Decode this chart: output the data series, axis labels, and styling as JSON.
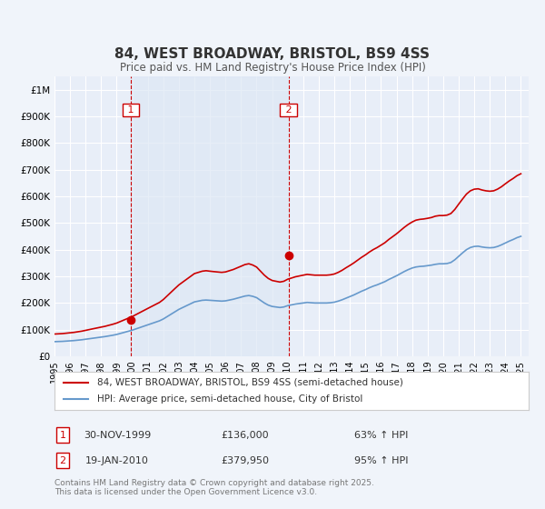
{
  "title": "84, WEST BROADWAY, BRISTOL, BS9 4SS",
  "subtitle": "Price paid vs. HM Land Registry's House Price Index (HPI)",
  "bg_color": "#f0f4fa",
  "plot_bg_color": "#e8eef8",
  "grid_color": "#ffffff",
  "red_color": "#cc0000",
  "blue_color": "#6699cc",
  "purchase1_year": 1999.92,
  "purchase1_price": 136000,
  "purchase1_label": "1",
  "purchase1_date": "30-NOV-1999",
  "purchase1_pct": "63% ↑ HPI",
  "purchase2_year": 2010.05,
  "purchase2_price": 379950,
  "purchase2_label": "2",
  "purchase2_date": "19-JAN-2010",
  "purchase2_pct": "95% ↑ HPI",
  "legend_line1": "84, WEST BROADWAY, BRISTOL, BS9 4SS (semi-detached house)",
  "legend_line2": "HPI: Average price, semi-detached house, City of Bristol",
  "footnote": "Contains HM Land Registry data © Crown copyright and database right 2025.\nThis data is licensed under the Open Government Licence v3.0.",
  "xmin": 1995,
  "xmax": 2025.5,
  "ymin": 0,
  "ymax": 1050000,
  "yticks": [
    0,
    100000,
    200000,
    300000,
    400000,
    500000,
    600000,
    700000,
    800000,
    900000,
    1000000
  ],
  "ytick_labels": [
    "£0",
    "£100K",
    "£200K",
    "£300K",
    "£400K",
    "£500K",
    "£600K",
    "£700K",
    "£800K",
    "£900K",
    "£1M"
  ],
  "xticks": [
    1995,
    1996,
    1997,
    1998,
    1999,
    2000,
    2001,
    2002,
    2003,
    2004,
    2005,
    2006,
    2007,
    2008,
    2009,
    2010,
    2011,
    2012,
    2013,
    2014,
    2015,
    2016,
    2017,
    2018,
    2019,
    2020,
    2021,
    2022,
    2023,
    2024,
    2025
  ],
  "hpi_x": [
    1995.0,
    1995.25,
    1995.5,
    1995.75,
    1996.0,
    1996.25,
    1996.5,
    1996.75,
    1997.0,
    1997.25,
    1997.5,
    1997.75,
    1998.0,
    1998.25,
    1998.5,
    1998.75,
    1999.0,
    1999.25,
    1999.5,
    1999.75,
    2000.0,
    2000.25,
    2000.5,
    2000.75,
    2001.0,
    2001.25,
    2001.5,
    2001.75,
    2002.0,
    2002.25,
    2002.5,
    2002.75,
    2003.0,
    2003.25,
    2003.5,
    2003.75,
    2004.0,
    2004.25,
    2004.5,
    2004.75,
    2005.0,
    2005.25,
    2005.5,
    2005.75,
    2006.0,
    2006.25,
    2006.5,
    2006.75,
    2007.0,
    2007.25,
    2007.5,
    2007.75,
    2008.0,
    2008.25,
    2008.5,
    2008.75,
    2009.0,
    2009.25,
    2009.5,
    2009.75,
    2010.0,
    2010.25,
    2010.5,
    2010.75,
    2011.0,
    2011.25,
    2011.5,
    2011.75,
    2012.0,
    2012.25,
    2012.5,
    2012.75,
    2013.0,
    2013.25,
    2013.5,
    2013.75,
    2014.0,
    2014.25,
    2014.5,
    2014.75,
    2015.0,
    2015.25,
    2015.5,
    2015.75,
    2016.0,
    2016.25,
    2016.5,
    2016.75,
    2017.0,
    2017.25,
    2017.5,
    2017.75,
    2018.0,
    2018.25,
    2018.5,
    2018.75,
    2019.0,
    2019.25,
    2019.5,
    2019.75,
    2020.0,
    2020.25,
    2020.5,
    2020.75,
    2021.0,
    2021.25,
    2021.5,
    2021.75,
    2022.0,
    2022.25,
    2022.5,
    2022.75,
    2023.0,
    2023.25,
    2023.5,
    2023.75,
    2024.0,
    2024.25,
    2024.5,
    2024.75,
    2025.0
  ],
  "hpi_y": [
    55000,
    55500,
    56000,
    57000,
    58000,
    59000,
    60500,
    62000,
    64000,
    66000,
    68000,
    70000,
    72000,
    74000,
    76500,
    79000,
    82000,
    86000,
    90000,
    94000,
    98000,
    103000,
    108000,
    113000,
    118000,
    123000,
    128000,
    133000,
    140000,
    149000,
    158000,
    167000,
    176000,
    183000,
    190000,
    197000,
    204000,
    207000,
    210000,
    211000,
    210000,
    209000,
    208000,
    207000,
    208000,
    211000,
    214000,
    218000,
    222000,
    226000,
    228000,
    225000,
    220000,
    210000,
    200000,
    192000,
    187000,
    185000,
    183000,
    185000,
    190000,
    193000,
    196000,
    198000,
    200000,
    202000,
    201000,
    200000,
    200000,
    200000,
    200000,
    201000,
    203000,
    207000,
    212000,
    218000,
    224000,
    230000,
    237000,
    244000,
    250000,
    257000,
    263000,
    268000,
    274000,
    280000,
    288000,
    295000,
    302000,
    310000,
    318000,
    325000,
    331000,
    335000,
    337000,
    338000,
    340000,
    342000,
    345000,
    347000,
    347000,
    348000,
    352000,
    362000,
    375000,
    388000,
    400000,
    408000,
    412000,
    413000,
    410000,
    408000,
    407000,
    408000,
    412000,
    418000,
    425000,
    432000,
    438000,
    445000,
    450000
  ],
  "hpi_indexed_x": [
    1995.0,
    1995.25,
    1995.5,
    1995.75,
    1996.0,
    1996.25,
    1996.5,
    1996.75,
    1997.0,
    1997.25,
    1997.5,
    1997.75,
    1998.0,
    1998.25,
    1998.5,
    1998.75,
    1999.0,
    1999.25,
    1999.5,
    1999.75,
    2000.0,
    2000.25,
    2000.5,
    2000.75,
    2001.0,
    2001.25,
    2001.5,
    2001.75,
    2002.0,
    2002.25,
    2002.5,
    2002.75,
    2003.0,
    2003.25,
    2003.5,
    2003.75,
    2004.0,
    2004.25,
    2004.5,
    2004.75,
    2005.0,
    2005.25,
    2005.5,
    2005.75,
    2006.0,
    2006.25,
    2006.5,
    2006.75,
    2007.0,
    2007.25,
    2007.5,
    2007.75,
    2008.0,
    2008.25,
    2008.5,
    2008.75,
    2009.0,
    2009.25,
    2009.5,
    2009.75,
    2010.0,
    2010.25,
    2010.5,
    2010.75,
    2011.0,
    2011.25,
    2011.5,
    2011.75,
    2012.0,
    2012.25,
    2012.5,
    2012.75,
    2013.0,
    2013.25,
    2013.5,
    2013.75,
    2014.0,
    2014.25,
    2014.5,
    2014.75,
    2015.0,
    2015.25,
    2015.5,
    2015.75,
    2016.0,
    2016.25,
    2016.5,
    2016.75,
    2017.0,
    2017.25,
    2017.5,
    2017.75,
    2018.0,
    2018.25,
    2018.5,
    2018.75,
    2019.0,
    2019.25,
    2019.5,
    2019.75,
    2020.0,
    2020.25,
    2020.5,
    2020.75,
    2021.0,
    2021.25,
    2021.5,
    2021.75,
    2022.0,
    2022.25,
    2022.5,
    2022.75,
    2023.0,
    2023.25,
    2023.5,
    2023.75,
    2024.0,
    2024.25,
    2024.5,
    2024.75,
    2025.0
  ],
  "hpi_indexed_y": [
    83500,
    84300,
    85100,
    86600,
    88200,
    89700,
    92000,
    94300,
    97300,
    100400,
    103500,
    106500,
    109500,
    112500,
    116400,
    120200,
    124700,
    130800,
    136900,
    143000,
    149100,
    156700,
    164300,
    171900,
    179500,
    187000,
    194500,
    202000,
    212900,
    226700,
    240500,
    254300,
    267700,
    278400,
    289000,
    299600,
    310200,
    314700,
    319200,
    321000,
    319200,
    317600,
    316200,
    314800,
    316400,
    321000,
    325500,
    331700,
    337800,
    344100,
    347100,
    342400,
    334700,
    319400,
    304200,
    292100,
    284400,
    281400,
    278500,
    281400,
    289100,
    293700,
    298300,
    301300,
    304300,
    307300,
    305700,
    304300,
    304300,
    304300,
    304300,
    305700,
    308700,
    314800,
    322600,
    332000,
    340700,
    350100,
    360600,
    371100,
    380300,
    390900,
    400100,
    407800,
    416800,
    426000,
    438100,
    448700,
    459400,
    471500,
    483700,
    494500,
    503600,
    510600,
    513600,
    515100,
    517600,
    520600,
    525600,
    527900,
    527900,
    529500,
    535600,
    550800,
    570800,
    590100,
    608500,
    620700,
    626800,
    628300,
    623800,
    620700,
    619100,
    620700,
    627000,
    635900,
    647000,
    657700,
    666900,
    677400,
    684700
  ],
  "shade_x1": 1999.92,
  "shade_x2": 2010.05
}
